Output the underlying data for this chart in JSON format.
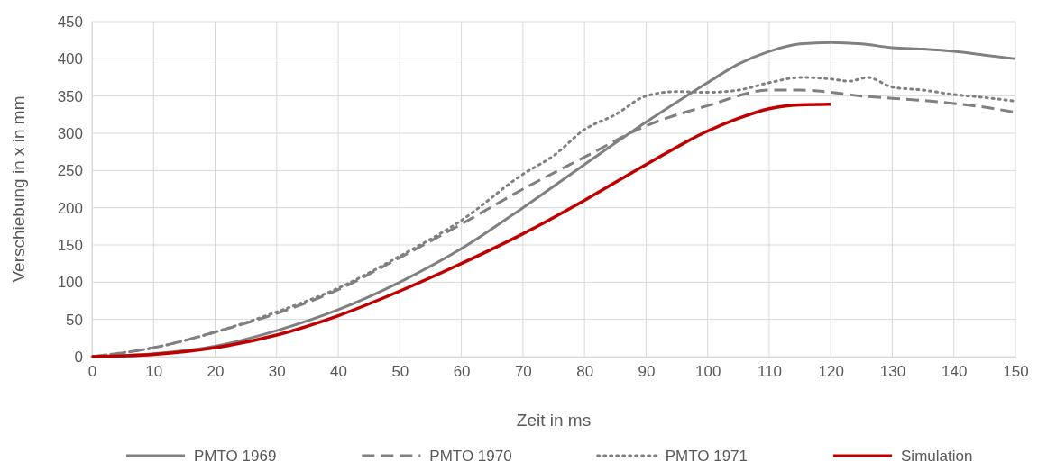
{
  "chart_data": {
    "type": "line",
    "xlabel": "Zeit in ms",
    "ylabel": "Verschiebung in x in mm",
    "xlim": [
      0,
      150
    ],
    "xticks": [
      0,
      10,
      20,
      30,
      40,
      50,
      60,
      70,
      80,
      90,
      100,
      110,
      120,
      130,
      140,
      150
    ],
    "ylim": [
      0,
      450
    ],
    "yticks": [
      0,
      50,
      100,
      150,
      200,
      250,
      300,
      350,
      400,
      450
    ],
    "grid": true,
    "legend": "bottom",
    "marker": "none",
    "series": [
      {
        "name": "PMTO 1969",
        "color": "#808080",
        "line_style": "solid",
        "x": [
          0,
          10,
          20,
          30,
          40,
          50,
          60,
          70,
          80,
          90,
          100,
          105,
          110,
          115,
          120,
          125,
          130,
          135,
          140,
          145,
          150
        ],
        "values": [
          0,
          4,
          14,
          35,
          63,
          100,
          145,
          200,
          258,
          315,
          368,
          393,
          410,
          420,
          422,
          420,
          415,
          413,
          410,
          405,
          400
        ]
      },
      {
        "name": "PMTO 1970",
        "color": "#808080",
        "line_style": "dashed",
        "x": [
          0,
          10,
          20,
          30,
          40,
          50,
          60,
          70,
          80,
          90,
          100,
          110,
          115,
          120,
          125,
          130,
          135,
          140,
          145,
          150
        ],
        "values": [
          0,
          12,
          33,
          58,
          90,
          133,
          178,
          225,
          268,
          310,
          337,
          358,
          358,
          355,
          350,
          347,
          344,
          340,
          335,
          328
        ]
      },
      {
        "name": "PMTO 1971",
        "color": "#808080",
        "line_style": "dotted",
        "x": [
          0,
          10,
          20,
          30,
          40,
          50,
          60,
          70,
          75,
          80,
          85,
          90,
          95,
          100,
          105,
          110,
          115,
          120,
          123,
          126,
          130,
          135,
          140,
          145,
          150
        ],
        "values": [
          0,
          12,
          33,
          60,
          92,
          135,
          183,
          245,
          270,
          305,
          325,
          350,
          356,
          355,
          358,
          368,
          375,
          373,
          370,
          375,
          362,
          358,
          352,
          348,
          343
        ]
      },
      {
        "name": "Simulation",
        "color": "#c00000",
        "line_style": "solid",
        "x": [
          0,
          10,
          20,
          30,
          40,
          50,
          60,
          70,
          80,
          90,
          100,
          105,
          110,
          115,
          120
        ],
        "values": [
          0,
          3,
          12,
          29,
          55,
          88,
          125,
          165,
          210,
          258,
          303,
          320,
          333,
          338,
          339
        ]
      }
    ]
  }
}
